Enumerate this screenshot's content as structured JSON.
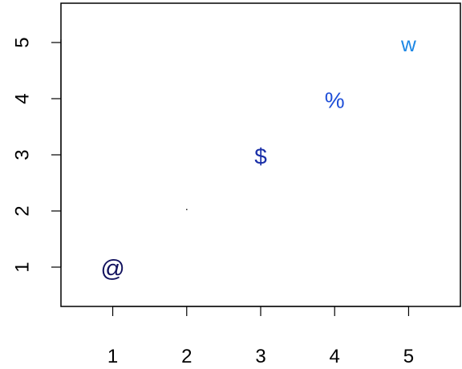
{
  "chart_data": {
    "type": "scatter",
    "title": "",
    "xlabel": "",
    "ylabel": "",
    "xlim": [
      0.3,
      5.7
    ],
    "ylim": [
      0.3,
      5.7
    ],
    "x_ticks": [
      "1",
      "2",
      "3",
      "4",
      "5"
    ],
    "y_ticks": [
      "1",
      "2",
      "3",
      "4",
      "5"
    ],
    "grid": false,
    "points": [
      {
        "x": 1,
        "y": 1,
        "symbol": "@",
        "color": "#12125e"
      },
      {
        "x": 2,
        "y": 2,
        "symbol": ".",
        "color": "#000000"
      },
      {
        "x": 3,
        "y": 3,
        "symbol": "$",
        "color": "#1a2fa8"
      },
      {
        "x": 4,
        "y": 4,
        "symbol": "%",
        "color": "#1f4fd8"
      },
      {
        "x": 5,
        "y": 5,
        "symbol": "w",
        "color": "#1e88e5"
      }
    ]
  }
}
